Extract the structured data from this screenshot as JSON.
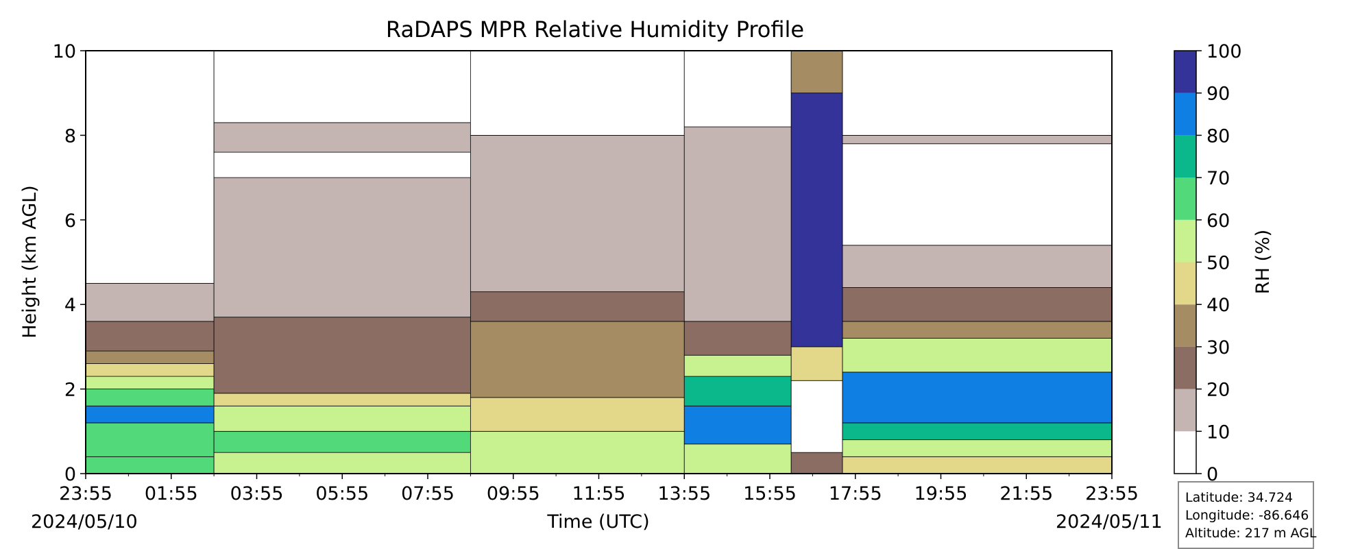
{
  "chart_data": {
    "type": "heatmap",
    "title": "RaDAPS MPR Relative Humidity Profile",
    "xlabel": "Time (UTC)",
    "ylabel": "Height (km AGL)",
    "x_tick_labels": [
      "23:55",
      "01:55",
      "03:55",
      "05:55",
      "07:55",
      "09:55",
      "11:55",
      "13:55",
      "15:55",
      "17:55",
      "19:55",
      "21:55",
      "23:55"
    ],
    "start_date": "2024/05/10",
    "end_date": "2024/05/11",
    "x_hours": [
      0,
      2,
      4,
      6,
      8,
      10,
      12,
      14,
      16,
      18,
      20,
      22,
      24
    ],
    "ylim": [
      0,
      10
    ],
    "y_ticks": [
      0,
      2,
      4,
      6,
      8,
      10
    ],
    "colorbar": {
      "label": "RH (%)",
      "ticks": [
        0,
        10,
        20,
        30,
        40,
        50,
        60,
        70,
        80,
        90,
        100
      ],
      "levels": [
        {
          "range": [
            0,
            10
          ],
          "color": "#ffffff"
        },
        {
          "range": [
            10,
            20
          ],
          "color": "#c4b5b3"
        },
        {
          "range": [
            20,
            30
          ],
          "color": "#8c6d63"
        },
        {
          "range": [
            30,
            40
          ],
          "color": "#a68c63"
        },
        {
          "range": [
            40,
            50
          ],
          "color": "#e3d889"
        },
        {
          "range": [
            50,
            60
          ],
          "color": "#c8f190"
        },
        {
          "range": [
            60,
            70
          ],
          "color": "#52d97a"
        },
        {
          "range": [
            70,
            80
          ],
          "color": "#0ab88c"
        },
        {
          "range": [
            80,
            90
          ],
          "color": "#0f7fe3"
        },
        {
          "range": [
            90,
            100
          ],
          "color": "#333399"
        }
      ]
    },
    "profile_segments": [
      {
        "hours": [
          0,
          3
        ],
        "bands": [
          [
            0,
            0.4,
            60
          ],
          [
            0.4,
            1.2,
            65
          ],
          [
            1.2,
            1.6,
            85
          ],
          [
            1.6,
            2.0,
            65
          ],
          [
            2.0,
            2.3,
            55
          ],
          [
            2.3,
            2.6,
            45
          ],
          [
            2.6,
            2.9,
            35
          ],
          [
            2.9,
            3.6,
            25
          ],
          [
            3.6,
            4.5,
            15
          ],
          [
            4.5,
            10,
            5
          ]
        ]
      },
      {
        "hours": [
          3,
          9
        ],
        "bands": [
          [
            0,
            0.5,
            55
          ],
          [
            0.5,
            1.0,
            65
          ],
          [
            1.0,
            1.6,
            55
          ],
          [
            1.6,
            1.9,
            45
          ],
          [
            1.9,
            3.7,
            25
          ],
          [
            3.7,
            7.0,
            15
          ],
          [
            7.0,
            7.6,
            5
          ],
          [
            7.6,
            8.3,
            15
          ],
          [
            8.3,
            10,
            5
          ]
        ]
      },
      {
        "hours": [
          9,
          14
        ],
        "bands": [
          [
            0,
            1.0,
            55
          ],
          [
            1.0,
            1.8,
            45
          ],
          [
            1.8,
            3.6,
            35
          ],
          [
            3.6,
            4.3,
            25
          ],
          [
            4.3,
            8.0,
            15
          ],
          [
            8.0,
            10,
            5
          ]
        ]
      },
      {
        "hours": [
          14,
          16.5
        ],
        "bands": [
          [
            0,
            0.7,
            55
          ],
          [
            0.7,
            1.6,
            85
          ],
          [
            1.6,
            2.3,
            75
          ],
          [
            2.3,
            2.8,
            55
          ],
          [
            2.8,
            3.6,
            25
          ],
          [
            3.6,
            8.2,
            15
          ],
          [
            8.2,
            10,
            5
          ]
        ]
      },
      {
        "hours": [
          16.5,
          17.7
        ],
        "bands": [
          [
            0,
            0.5,
            25
          ],
          [
            0.5,
            2.2,
            5
          ],
          [
            2.2,
            3.0,
            45
          ],
          [
            3.0,
            9.0,
            90
          ],
          [
            9.0,
            10,
            30
          ]
        ]
      },
      {
        "hours": [
          17.7,
          24
        ],
        "bands": [
          [
            0,
            0.4,
            45
          ],
          [
            0.4,
            0.8,
            55
          ],
          [
            0.8,
            1.2,
            75
          ],
          [
            1.2,
            2.4,
            85
          ],
          [
            2.4,
            3.2,
            55
          ],
          [
            3.2,
            3.6,
            35
          ],
          [
            3.6,
            4.4,
            25
          ],
          [
            4.4,
            5.4,
            15
          ],
          [
            5.4,
            7.8,
            5
          ],
          [
            7.8,
            8.0,
            15
          ],
          [
            8.0,
            10,
            5
          ]
        ]
      }
    ]
  },
  "station_info": {
    "latitude": "Latitude: 34.724",
    "longitude": "Longitude: -86.646",
    "altitude": "Altitude: 217 m AGL"
  }
}
